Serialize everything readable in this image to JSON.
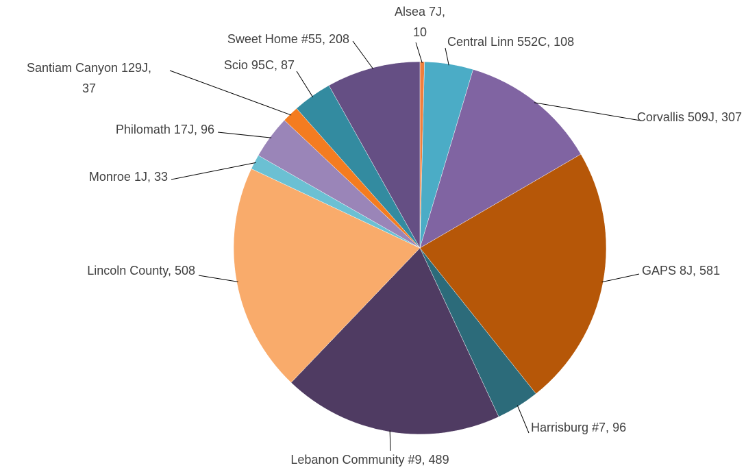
{
  "chart_data": {
    "type": "pie",
    "categories": [
      "Alsea 7J",
      "Central Linn 552C",
      "Corvallis 509J",
      "GAPS 8J",
      "Harrisburg #7",
      "Lebanon Community #9",
      "Lincoln County",
      "Monroe 1J",
      "Philomath 17J",
      "Santiam Canyon 129J",
      "Scio 95C",
      "Sweet Home #55"
    ],
    "values": [
      10,
      108,
      307,
      581,
      96,
      489,
      508,
      33,
      96,
      37,
      87,
      208
    ],
    "colors": [
      "#f07f3c",
      "#4bacc6",
      "#8064a2",
      "#b65708",
      "#2c6b7a",
      "#4f3b62",
      "#f9ab6b",
      "#6bc0d3",
      "#9a85b8",
      "#f47c20",
      "#338ba0",
      "#654f84"
    ]
  }
}
